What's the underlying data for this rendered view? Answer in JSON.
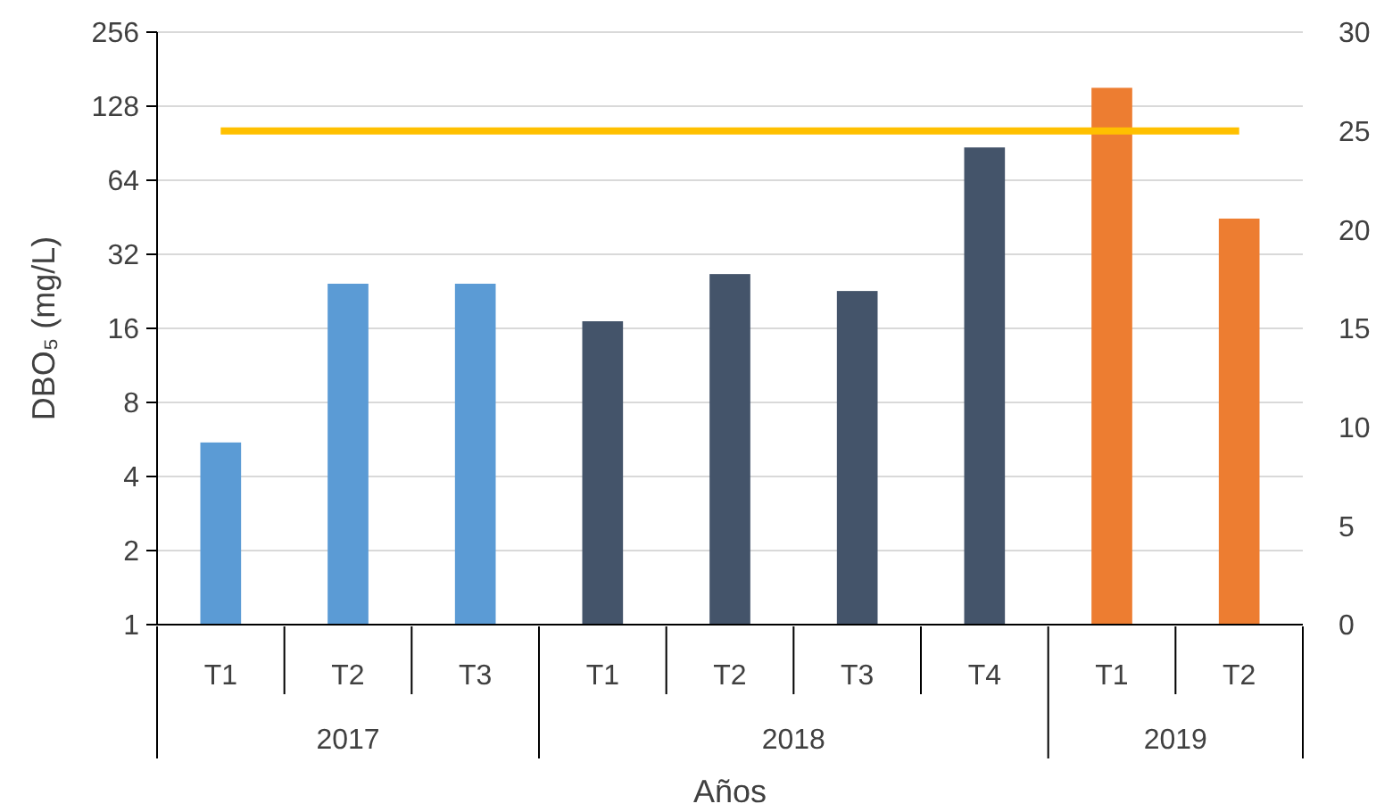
{
  "chart_data": {
    "type": "bar",
    "ylabel": "DBO₅ (mg/L)",
    "xlabel": "Años",
    "categories": [
      "T1",
      "T2",
      "T3",
      "T1",
      "T2",
      "T3",
      "T4",
      "T1",
      "T2"
    ],
    "values": [
      5.5,
      24.3,
      24.3,
      17.1,
      26.6,
      22.7,
      87,
      152,
      44.7
    ],
    "colors": [
      "#5b9bd5",
      "#5b9bd5",
      "#5b9bd5",
      "#44546a",
      "#44546a",
      "#44546a",
      "#44546a",
      "#ed7d31",
      "#ed7d31"
    ],
    "annotations": [
      "2017",
      "2018",
      "2019"
    ],
    "log": "y",
    "ylim": [
      1,
      256
    ],
    "yticks": [
      1,
      2,
      4,
      8,
      16,
      32,
      64,
      128,
      256
    ],
    "y2lim": [
      0,
      30
    ],
    "y2ticks": [
      0,
      5,
      10,
      15,
      20,
      25,
      30
    ],
    "ref_lines": [
      {
        "axis": "y2",
        "value": 25,
        "color": "#ffc000"
      }
    ],
    "grid": "y"
  }
}
